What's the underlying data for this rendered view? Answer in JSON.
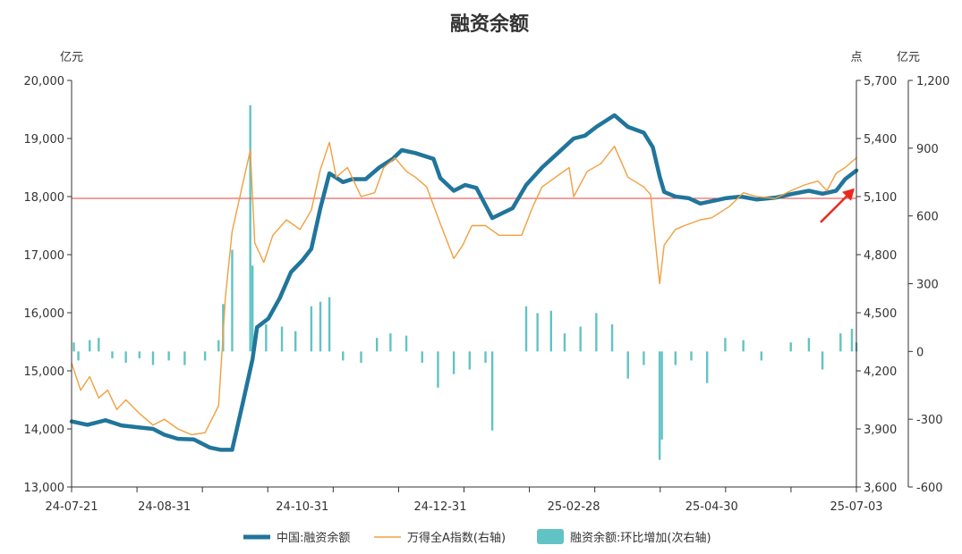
{
  "chart_data": {
    "type": "line",
    "title": "融资余额",
    "units": {
      "left": "亿元",
      "right1": "点",
      "right2": "亿元"
    },
    "x_ticks": [
      "24-07-21",
      "24-08-31",
      "24-10-31",
      "24-12-31",
      "25-02-28",
      "25-04-30",
      "25-07-03"
    ],
    "y_left": {
      "min": 13000,
      "max": 20000,
      "ticks": [
        "13,000",
        "14,000",
        "15,000",
        "16,000",
        "17,000",
        "18,000",
        "19,000",
        "20,000"
      ]
    },
    "y_right1": {
      "min": 3600,
      "max": 5700,
      "ticks": [
        "3,600",
        "3,900",
        "4,200",
        "4,500",
        "4,800",
        "5,100",
        "5,400",
        "5,700"
      ]
    },
    "y_right2": {
      "min": -600,
      "max": 1200,
      "ticks": [
        "-600",
        "-300",
        "0",
        "300",
        "600",
        "900",
        "1,200"
      ]
    },
    "reference_line": {
      "axis": "left",
      "value": 17970,
      "color": "#e8413b"
    },
    "arrow": {
      "color": "#e8291c",
      "target": "25-07-03"
    },
    "series": [
      {
        "name": "中国:融资余额",
        "axis": "left",
        "color": "#21759b",
        "points": [
          [
            "24-07-21",
            14130
          ],
          [
            "24-07-28",
            14070
          ],
          [
            "24-08-05",
            14150
          ],
          [
            "24-08-12",
            14060
          ],
          [
            "24-08-19",
            14030
          ],
          [
            "24-08-26",
            14000
          ],
          [
            "24-08-31",
            13900
          ],
          [
            "24-09-06",
            13830
          ],
          [
            "24-09-13",
            13820
          ],
          [
            "24-09-20",
            13680
          ],
          [
            "24-09-25",
            13640
          ],
          [
            "24-09-30",
            13640
          ],
          [
            "24-10-05",
            14500
          ],
          [
            "24-10-09",
            15200
          ],
          [
            "24-10-11",
            15750
          ],
          [
            "24-10-16",
            15900
          ],
          [
            "24-10-21",
            16250
          ],
          [
            "24-10-26",
            16700
          ],
          [
            "24-10-31",
            16900
          ],
          [
            "24-11-04",
            17100
          ],
          [
            "24-11-08",
            17800
          ],
          [
            "24-11-12",
            18400
          ],
          [
            "24-11-18",
            18250
          ],
          [
            "24-11-22",
            18300
          ],
          [
            "24-11-28",
            18300
          ],
          [
            "24-12-04",
            18500
          ],
          [
            "24-12-10",
            18650
          ],
          [
            "24-12-14",
            18800
          ],
          [
            "24-12-20",
            18750
          ],
          [
            "24-12-28",
            18650
          ],
          [
            "24-12-31",
            18320
          ],
          [
            "25-01-06",
            18100
          ],
          [
            "25-01-11",
            18200
          ],
          [
            "25-01-16",
            18150
          ],
          [
            "25-01-23",
            17630
          ],
          [
            "25-02-01",
            17800
          ],
          [
            "25-02-07",
            18200
          ],
          [
            "25-02-14",
            18500
          ],
          [
            "25-02-21",
            18750
          ],
          [
            "25-02-28",
            19000
          ],
          [
            "25-03-05",
            19050
          ],
          [
            "25-03-10",
            19200
          ],
          [
            "25-03-18",
            19400
          ],
          [
            "25-03-24",
            19200
          ],
          [
            "25-03-31",
            19100
          ],
          [
            "25-04-04",
            18850
          ],
          [
            "25-04-07",
            18350
          ],
          [
            "25-04-09",
            18080
          ],
          [
            "25-04-14",
            18000
          ],
          [
            "25-04-20",
            17970
          ],
          [
            "25-04-25",
            17880
          ],
          [
            "25-04-30",
            17920
          ],
          [
            "25-05-06",
            17970
          ],
          [
            "25-05-13",
            18000
          ],
          [
            "25-05-20",
            17950
          ],
          [
            "25-05-28",
            17980
          ],
          [
            "25-06-05",
            18050
          ],
          [
            "25-06-12",
            18100
          ],
          [
            "25-06-18",
            18050
          ],
          [
            "25-06-24",
            18100
          ],
          [
            "25-06-28",
            18300
          ],
          [
            "25-07-03",
            18450
          ]
        ]
      },
      {
        "name": "万得全A指数(右轴)",
        "axis": "right1",
        "color": "#f0a040",
        "points": [
          [
            "24-07-21",
            4240
          ],
          [
            "24-07-25",
            4100
          ],
          [
            "24-07-29",
            4170
          ],
          [
            "24-08-02",
            4060
          ],
          [
            "24-08-06",
            4100
          ],
          [
            "24-08-10",
            4000
          ],
          [
            "24-08-14",
            4050
          ],
          [
            "24-08-20",
            3980
          ],
          [
            "24-08-26",
            3920
          ],
          [
            "24-08-31",
            3950
          ],
          [
            "24-09-06",
            3900
          ],
          [
            "24-09-12",
            3870
          ],
          [
            "24-09-18",
            3880
          ],
          [
            "24-09-24",
            4020
          ],
          [
            "24-09-27",
            4580
          ],
          [
            "24-09-30",
            4920
          ],
          [
            "24-10-08",
            5340
          ],
          [
            "24-10-10",
            4860
          ],
          [
            "24-10-14",
            4760
          ],
          [
            "24-10-18",
            4900
          ],
          [
            "24-10-24",
            4980
          ],
          [
            "24-10-30",
            4930
          ],
          [
            "24-11-04",
            5030
          ],
          [
            "24-11-08",
            5240
          ],
          [
            "24-11-12",
            5380
          ],
          [
            "24-11-15",
            5200
          ],
          [
            "24-11-20",
            5250
          ],
          [
            "24-11-26",
            5100
          ],
          [
            "24-12-02",
            5120
          ],
          [
            "24-12-06",
            5250
          ],
          [
            "24-12-11",
            5300
          ],
          [
            "24-12-16",
            5230
          ],
          [
            "24-12-20",
            5200
          ],
          [
            "24-12-25",
            5150
          ],
          [
            "24-12-31",
            4960
          ],
          [
            "25-01-06",
            4780
          ],
          [
            "25-01-10",
            4850
          ],
          [
            "25-01-14",
            4950
          ],
          [
            "25-01-20",
            4950
          ],
          [
            "25-01-26",
            4900
          ],
          [
            "25-02-05",
            4900
          ],
          [
            "25-02-10",
            5050
          ],
          [
            "25-02-14",
            5150
          ],
          [
            "25-02-20",
            5200
          ],
          [
            "25-02-26",
            5250
          ],
          [
            "25-02-28",
            5100
          ],
          [
            "25-03-06",
            5230
          ],
          [
            "25-03-12",
            5270
          ],
          [
            "25-03-18",
            5360
          ],
          [
            "25-03-24",
            5200
          ],
          [
            "25-03-31",
            5150
          ],
          [
            "25-04-03",
            5110
          ],
          [
            "25-04-07",
            4650
          ],
          [
            "25-04-09",
            4850
          ],
          [
            "25-04-14",
            4930
          ],
          [
            "25-04-18",
            4950
          ],
          [
            "25-04-25",
            4980
          ],
          [
            "25-04-30",
            4990
          ],
          [
            "25-05-08",
            5050
          ],
          [
            "25-05-14",
            5120
          ],
          [
            "25-05-20",
            5100
          ],
          [
            "25-05-28",
            5090
          ],
          [
            "25-06-04",
            5130
          ],
          [
            "25-06-10",
            5160
          ],
          [
            "25-06-16",
            5180
          ],
          [
            "25-06-20",
            5130
          ],
          [
            "25-06-24",
            5220
          ],
          [
            "25-06-28",
            5250
          ],
          [
            "25-07-03",
            5300
          ]
        ]
      },
      {
        "name": "融资余额:环比增加(次右轴)",
        "axis": "right2",
        "color": "#62c3c5",
        "type": "bar",
        "points": [
          [
            "24-07-22",
            40
          ],
          [
            "24-07-24",
            -40
          ],
          [
            "24-07-29",
            50
          ],
          [
            "24-08-02",
            60
          ],
          [
            "24-08-08",
            -30
          ],
          [
            "24-08-14",
            -50
          ],
          [
            "24-08-20",
            -30
          ],
          [
            "24-08-26",
            -60
          ],
          [
            "24-09-02",
            -40
          ],
          [
            "24-09-09",
            -60
          ],
          [
            "24-09-18",
            -40
          ],
          [
            "24-09-24",
            50
          ],
          [
            "24-09-26",
            210
          ],
          [
            "24-09-30",
            450
          ],
          [
            "24-10-08",
            1090
          ],
          [
            "24-10-09",
            380
          ],
          [
            "24-10-15",
            120
          ],
          [
            "24-10-22",
            110
          ],
          [
            "24-10-28",
            90
          ],
          [
            "24-11-04",
            200
          ],
          [
            "24-11-08",
            220
          ],
          [
            "24-11-12",
            240
          ],
          [
            "24-11-18",
            -40
          ],
          [
            "24-11-26",
            -50
          ],
          [
            "24-12-03",
            60
          ],
          [
            "24-12-09",
            80
          ],
          [
            "24-12-16",
            70
          ],
          [
            "24-12-23",
            -50
          ],
          [
            "24-12-30",
            -160
          ],
          [
            "25-01-06",
            -100
          ],
          [
            "25-01-13",
            -80
          ],
          [
            "25-01-20",
            -50
          ],
          [
            "25-01-23",
            -350
          ],
          [
            "25-02-07",
            200
          ],
          [
            "25-02-12",
            170
          ],
          [
            "25-02-18",
            180
          ],
          [
            "25-02-24",
            80
          ],
          [
            "25-03-03",
            110
          ],
          [
            "25-03-10",
            170
          ],
          [
            "25-03-17",
            120
          ],
          [
            "25-03-24",
            -120
          ],
          [
            "25-03-31",
            -60
          ],
          [
            "25-04-07",
            -480
          ],
          [
            "25-04-08",
            -390
          ],
          [
            "25-04-14",
            -60
          ],
          [
            "25-04-21",
            -40
          ],
          [
            "25-04-28",
            -140
          ],
          [
            "25-05-06",
            60
          ],
          [
            "25-05-14",
            50
          ],
          [
            "25-05-22",
            -40
          ],
          [
            "25-06-04",
            40
          ],
          [
            "25-06-12",
            60
          ],
          [
            "25-06-18",
            -80
          ],
          [
            "25-06-26",
            80
          ],
          [
            "25-07-01",
            100
          ],
          [
            "25-07-03",
            40
          ]
        ]
      }
    ]
  }
}
